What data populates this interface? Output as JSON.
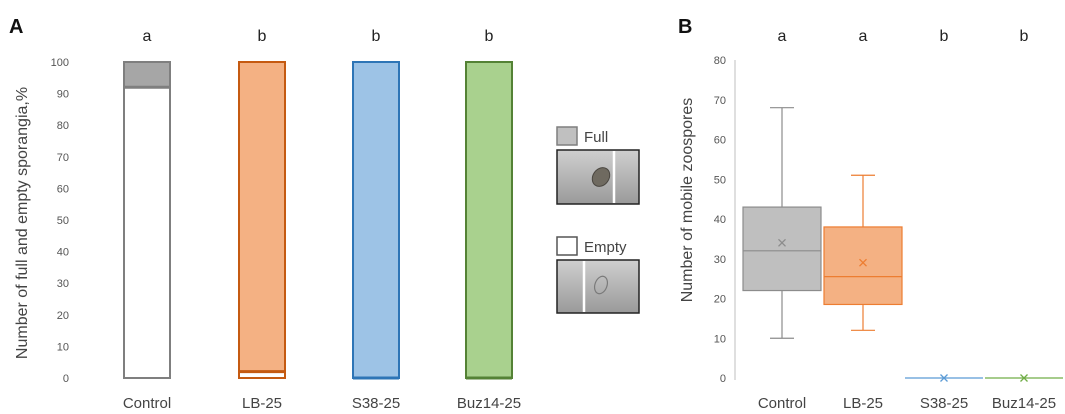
{
  "chart_data": [
    {
      "panel": "A",
      "type": "bar",
      "stacked": true,
      "ylabel": "Number of full and empty sporangia,%",
      "ylim": [
        0,
        100
      ],
      "yticks": [
        0,
        10,
        20,
        30,
        40,
        50,
        60,
        70,
        80,
        90,
        100
      ],
      "categories": [
        "Control",
        "LB-25",
        "S38-25",
        "Buz14-25"
      ],
      "significance": [
        "a",
        "b",
        "b",
        "b"
      ],
      "series": [
        {
          "name": "Empty",
          "values": [
            92,
            2,
            0,
            0
          ]
        },
        {
          "name": "Full",
          "values": [
            8,
            98,
            100,
            100
          ]
        }
      ],
      "bar_colors": [
        "#a6a6a6",
        "#f4b183",
        "#9dc3e6",
        "#a9d18e"
      ],
      "edge_colors": [
        "#7f7f7f",
        "#c55a11",
        "#2e75b6",
        "#548235"
      ],
      "legend": {
        "position": "right",
        "items": [
          "Full",
          "Empty"
        ]
      }
    },
    {
      "panel": "B",
      "type": "box",
      "ylabel": "Number of mobile zoospores",
      "ylim": [
        0,
        80
      ],
      "yticks": [
        0,
        10,
        20,
        30,
        40,
        50,
        60,
        70,
        80
      ],
      "categories": [
        "Control",
        "LB-25",
        "S38-25",
        "Buz14-25"
      ],
      "significance": [
        "a",
        "a",
        "b",
        "b"
      ],
      "boxes": [
        {
          "min": 10,
          "q1": 22,
          "median": 32,
          "q3": 43,
          "max": 68,
          "mean": 34
        },
        {
          "min": 12,
          "q1": 18.5,
          "median": 25.5,
          "q3": 38,
          "max": 51,
          "mean": 29
        },
        {
          "min": 0,
          "q1": 0,
          "median": 0,
          "q3": 0,
          "max": 0,
          "mean": 0
        },
        {
          "min": 0,
          "q1": 0,
          "median": 0,
          "q3": 0,
          "max": 0,
          "mean": 0
        }
      ],
      "fill_colors": [
        "#bfbfbf",
        "#f4b183",
        "#9dc3e6",
        "#a9d18e"
      ],
      "line_colors": [
        "#8c8c8c",
        "#ed7d31",
        "#5b9bd5",
        "#70ad47"
      ]
    }
  ]
}
